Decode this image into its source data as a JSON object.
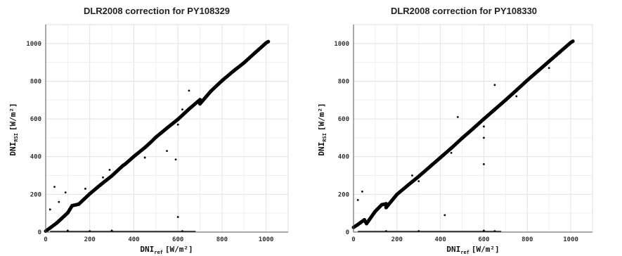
{
  "chart_data": [
    {
      "type": "scatter",
      "title": "DLR2008 correction for PY108329",
      "xlabel": {
        "main": "DNI",
        "sub": "ref",
        "unit": "[W/m²]"
      },
      "ylabel": {
        "main": "DNI",
        "sub": "RSI",
        "unit": "[W/m²]"
      },
      "xlim": [
        0,
        1100
      ],
      "ylim": [
        0,
        1100
      ],
      "xticks": [
        "0",
        "200",
        "400",
        "600",
        "800",
        "1000"
      ],
      "yticks": [
        "0",
        "200",
        "400",
        "600",
        "800",
        "1000"
      ],
      "grid": true,
      "marker_color": "#000000",
      "series": [
        {
          "points": [
            [
              0,
              5
            ],
            [
              20,
              22
            ],
            [
              50,
              48
            ],
            [
              100,
              102
            ],
            [
              150,
              148
            ],
            [
              200,
              203
            ],
            [
              250,
              252
            ],
            [
              300,
              298
            ],
            [
              350,
              352
            ],
            [
              400,
              401
            ],
            [
              450,
              448
            ],
            [
              500,
              503
            ],
            [
              550,
              551
            ],
            [
              600,
              598
            ],
            [
              650,
              652
            ],
            [
              700,
              702
            ],
            [
              750,
              748
            ],
            [
              800,
              803
            ],
            [
              850,
              852
            ],
            [
              900,
              898
            ],
            [
              950,
              951
            ],
            [
              1000,
              1003
            ],
            [
              1010,
              1010
            ],
            [
              20,
              120
            ],
            [
              60,
              160
            ],
            [
              90,
              210
            ],
            [
              180,
              230
            ],
            [
              260,
              290
            ],
            [
              290,
              330
            ],
            [
              360,
              360
            ],
            [
              480,
              480
            ],
            [
              550,
              430
            ],
            [
              620,
              650
            ],
            [
              650,
              750
            ],
            [
              700,
              680
            ],
            [
              600,
              570
            ],
            [
              450,
              395
            ],
            [
              40,
              240
            ],
            [
              120,
              140
            ],
            [
              590,
              385
            ],
            [
              600,
              80
            ],
            [
              300,
              8
            ],
            [
              200,
              5
            ],
            [
              620,
              5
            ],
            [
              100,
              8
            ]
          ]
        }
      ]
    },
    {
      "type": "scatter",
      "title": "DLR2008 correction for PY108330",
      "xlabel": {
        "main": "DNI",
        "sub": "ref",
        "unit": "[W/m²]"
      },
      "ylabel": {
        "main": "DNI",
        "sub": "RSI",
        "unit": "[W/m²]"
      },
      "xlim": [
        0,
        1100
      ],
      "ylim": [
        0,
        1100
      ],
      "xticks": [
        "0",
        "200",
        "400",
        "600",
        "800",
        "1000"
      ],
      "yticks": [
        "0",
        "200",
        "400",
        "600",
        "800",
        "1000"
      ],
      "grid": true,
      "marker_color": "#000000",
      "series": [
        {
          "points": [
            [
              0,
              25
            ],
            [
              20,
              40
            ],
            [
              50,
              65
            ],
            [
              100,
              110
            ],
            [
              150,
              150
            ],
            [
              200,
              200
            ],
            [
              250,
              248
            ],
            [
              300,
              295
            ],
            [
              350,
              345
            ],
            [
              400,
              395
            ],
            [
              450,
              445
            ],
            [
              500,
              498
            ],
            [
              550,
              548
            ],
            [
              600,
              600
            ],
            [
              650,
              650
            ],
            [
              700,
              700
            ],
            [
              750,
              752
            ],
            [
              800,
              805
            ],
            [
              850,
              855
            ],
            [
              900,
              905
            ],
            [
              950,
              955
            ],
            [
              1000,
              1005
            ],
            [
              1010,
              1012
            ],
            [
              60,
              45
            ],
            [
              150,
              130
            ],
            [
              300,
              270
            ],
            [
              450,
              420
            ],
            [
              600,
              560
            ],
            [
              750,
              720
            ],
            [
              900,
              870
            ],
            [
              40,
              215
            ],
            [
              20,
              170
            ],
            [
              130,
              145
            ],
            [
              270,
              300
            ],
            [
              480,
              610
            ],
            [
              650,
              780
            ],
            [
              360,
              355
            ],
            [
              600,
              500
            ],
            [
              600,
              360
            ],
            [
              420,
              90
            ],
            [
              600,
              8
            ],
            [
              650,
              5
            ],
            [
              300,
              5
            ],
            [
              150,
              5
            ]
          ]
        }
      ]
    }
  ]
}
